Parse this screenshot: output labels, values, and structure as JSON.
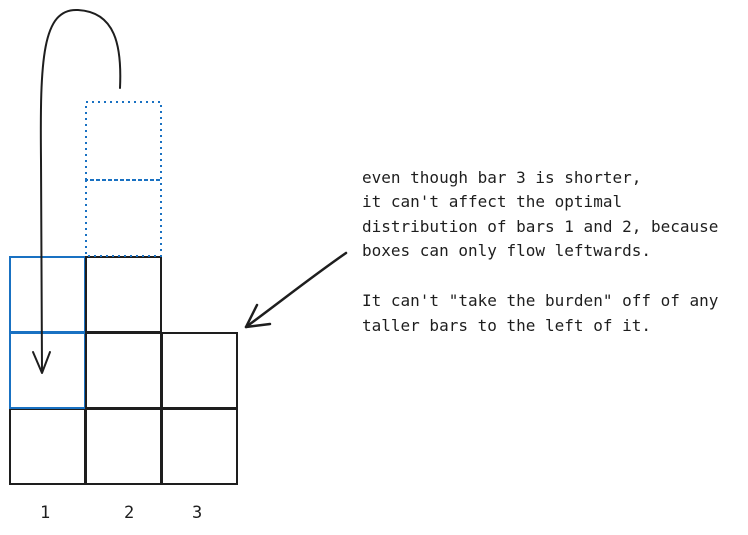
{
  "colors": {
    "ink": "#1e1e1e",
    "highlight": "#1971c2",
    "dotted": "#1971c2"
  },
  "bars": [
    {
      "label": "1",
      "boxes": 3,
      "highlighted_boxes": 2
    },
    {
      "label": "2",
      "boxes": 3,
      "moved_boxes": 2
    },
    {
      "label": "3",
      "boxes": 2
    }
  ],
  "annotation": {
    "lines": [
      "even though bar 3 is shorter,",
      "it can't affect the optimal",
      "distribution of bars 1 and 2, because",
      "boxes can only flow leftwards.",
      "",
      "It can't \"take the burden\" off of any",
      "taller bars to the left of it."
    ]
  },
  "icons": [
    "curved-arrow-icon",
    "pointer-arrow-icon"
  ]
}
